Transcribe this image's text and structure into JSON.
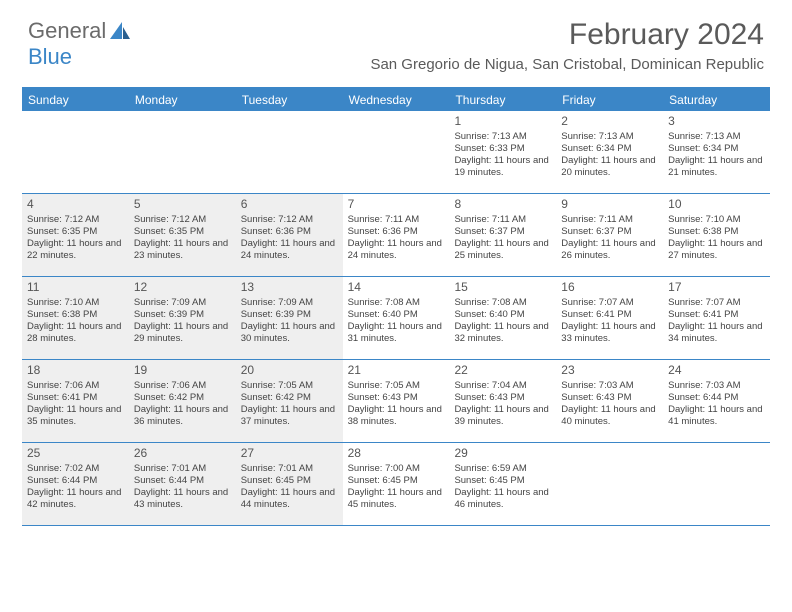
{
  "logo": {
    "text1": "General",
    "text2": "Blue"
  },
  "title": "February 2024",
  "location": "San Gregorio de Nigua, San Cristobal, Dominican Republic",
  "dayHeaders": [
    "Sunday",
    "Monday",
    "Tuesday",
    "Wednesday",
    "Thursday",
    "Friday",
    "Saturday"
  ],
  "colors": {
    "accent": "#3b86c7",
    "text": "#5a5a5a",
    "shaded": "#efefef",
    "white": "#ffffff"
  },
  "weeks": [
    [
      {
        "empty": true,
        "shaded": false
      },
      {
        "empty": true,
        "shaded": false
      },
      {
        "empty": true,
        "shaded": false
      },
      {
        "empty": true,
        "shaded": false
      },
      {
        "num": "1",
        "shaded": false,
        "sunrise": "Sunrise: 7:13 AM",
        "sunset": "Sunset: 6:33 PM",
        "daylight": "Daylight: 11 hours and 19 minutes."
      },
      {
        "num": "2",
        "shaded": false,
        "sunrise": "Sunrise: 7:13 AM",
        "sunset": "Sunset: 6:34 PM",
        "daylight": "Daylight: 11 hours and 20 minutes."
      },
      {
        "num": "3",
        "shaded": false,
        "sunrise": "Sunrise: 7:13 AM",
        "sunset": "Sunset: 6:34 PM",
        "daylight": "Daylight: 11 hours and 21 minutes."
      }
    ],
    [
      {
        "num": "4",
        "shaded": true,
        "sunrise": "Sunrise: 7:12 AM",
        "sunset": "Sunset: 6:35 PM",
        "daylight": "Daylight: 11 hours and 22 minutes."
      },
      {
        "num": "5",
        "shaded": true,
        "sunrise": "Sunrise: 7:12 AM",
        "sunset": "Sunset: 6:35 PM",
        "daylight": "Daylight: 11 hours and 23 minutes."
      },
      {
        "num": "6",
        "shaded": true,
        "sunrise": "Sunrise: 7:12 AM",
        "sunset": "Sunset: 6:36 PM",
        "daylight": "Daylight: 11 hours and 24 minutes."
      },
      {
        "num": "7",
        "shaded": false,
        "sunrise": "Sunrise: 7:11 AM",
        "sunset": "Sunset: 6:36 PM",
        "daylight": "Daylight: 11 hours and 24 minutes."
      },
      {
        "num": "8",
        "shaded": false,
        "sunrise": "Sunrise: 7:11 AM",
        "sunset": "Sunset: 6:37 PM",
        "daylight": "Daylight: 11 hours and 25 minutes."
      },
      {
        "num": "9",
        "shaded": false,
        "sunrise": "Sunrise: 7:11 AM",
        "sunset": "Sunset: 6:37 PM",
        "daylight": "Daylight: 11 hours and 26 minutes."
      },
      {
        "num": "10",
        "shaded": false,
        "sunrise": "Sunrise: 7:10 AM",
        "sunset": "Sunset: 6:38 PM",
        "daylight": "Daylight: 11 hours and 27 minutes."
      }
    ],
    [
      {
        "num": "11",
        "shaded": true,
        "sunrise": "Sunrise: 7:10 AM",
        "sunset": "Sunset: 6:38 PM",
        "daylight": "Daylight: 11 hours and 28 minutes."
      },
      {
        "num": "12",
        "shaded": true,
        "sunrise": "Sunrise: 7:09 AM",
        "sunset": "Sunset: 6:39 PM",
        "daylight": "Daylight: 11 hours and 29 minutes."
      },
      {
        "num": "13",
        "shaded": true,
        "sunrise": "Sunrise: 7:09 AM",
        "sunset": "Sunset: 6:39 PM",
        "daylight": "Daylight: 11 hours and 30 minutes."
      },
      {
        "num": "14",
        "shaded": false,
        "sunrise": "Sunrise: 7:08 AM",
        "sunset": "Sunset: 6:40 PM",
        "daylight": "Daylight: 11 hours and 31 minutes."
      },
      {
        "num": "15",
        "shaded": false,
        "sunrise": "Sunrise: 7:08 AM",
        "sunset": "Sunset: 6:40 PM",
        "daylight": "Daylight: 11 hours and 32 minutes."
      },
      {
        "num": "16",
        "shaded": false,
        "sunrise": "Sunrise: 7:07 AM",
        "sunset": "Sunset: 6:41 PM",
        "daylight": "Daylight: 11 hours and 33 minutes."
      },
      {
        "num": "17",
        "shaded": false,
        "sunrise": "Sunrise: 7:07 AM",
        "sunset": "Sunset: 6:41 PM",
        "daylight": "Daylight: 11 hours and 34 minutes."
      }
    ],
    [
      {
        "num": "18",
        "shaded": true,
        "sunrise": "Sunrise: 7:06 AM",
        "sunset": "Sunset: 6:41 PM",
        "daylight": "Daylight: 11 hours and 35 minutes."
      },
      {
        "num": "19",
        "shaded": true,
        "sunrise": "Sunrise: 7:06 AM",
        "sunset": "Sunset: 6:42 PM",
        "daylight": "Daylight: 11 hours and 36 minutes."
      },
      {
        "num": "20",
        "shaded": true,
        "sunrise": "Sunrise: 7:05 AM",
        "sunset": "Sunset: 6:42 PM",
        "daylight": "Daylight: 11 hours and 37 minutes."
      },
      {
        "num": "21",
        "shaded": false,
        "sunrise": "Sunrise: 7:05 AM",
        "sunset": "Sunset: 6:43 PM",
        "daylight": "Daylight: 11 hours and 38 minutes."
      },
      {
        "num": "22",
        "shaded": false,
        "sunrise": "Sunrise: 7:04 AM",
        "sunset": "Sunset: 6:43 PM",
        "daylight": "Daylight: 11 hours and 39 minutes."
      },
      {
        "num": "23",
        "shaded": false,
        "sunrise": "Sunrise: 7:03 AM",
        "sunset": "Sunset: 6:43 PM",
        "daylight": "Daylight: 11 hours and 40 minutes."
      },
      {
        "num": "24",
        "shaded": false,
        "sunrise": "Sunrise: 7:03 AM",
        "sunset": "Sunset: 6:44 PM",
        "daylight": "Daylight: 11 hours and 41 minutes."
      }
    ],
    [
      {
        "num": "25",
        "shaded": true,
        "sunrise": "Sunrise: 7:02 AM",
        "sunset": "Sunset: 6:44 PM",
        "daylight": "Daylight: 11 hours and 42 minutes."
      },
      {
        "num": "26",
        "shaded": true,
        "sunrise": "Sunrise: 7:01 AM",
        "sunset": "Sunset: 6:44 PM",
        "daylight": "Daylight: 11 hours and 43 minutes."
      },
      {
        "num": "27",
        "shaded": true,
        "sunrise": "Sunrise: 7:01 AM",
        "sunset": "Sunset: 6:45 PM",
        "daylight": "Daylight: 11 hours and 44 minutes."
      },
      {
        "num": "28",
        "shaded": false,
        "sunrise": "Sunrise: 7:00 AM",
        "sunset": "Sunset: 6:45 PM",
        "daylight": "Daylight: 11 hours and 45 minutes."
      },
      {
        "num": "29",
        "shaded": false,
        "sunrise": "Sunrise: 6:59 AM",
        "sunset": "Sunset: 6:45 PM",
        "daylight": "Daylight: 11 hours and 46 minutes."
      },
      {
        "empty": true,
        "shaded": false
      },
      {
        "empty": true,
        "shaded": false
      }
    ]
  ]
}
